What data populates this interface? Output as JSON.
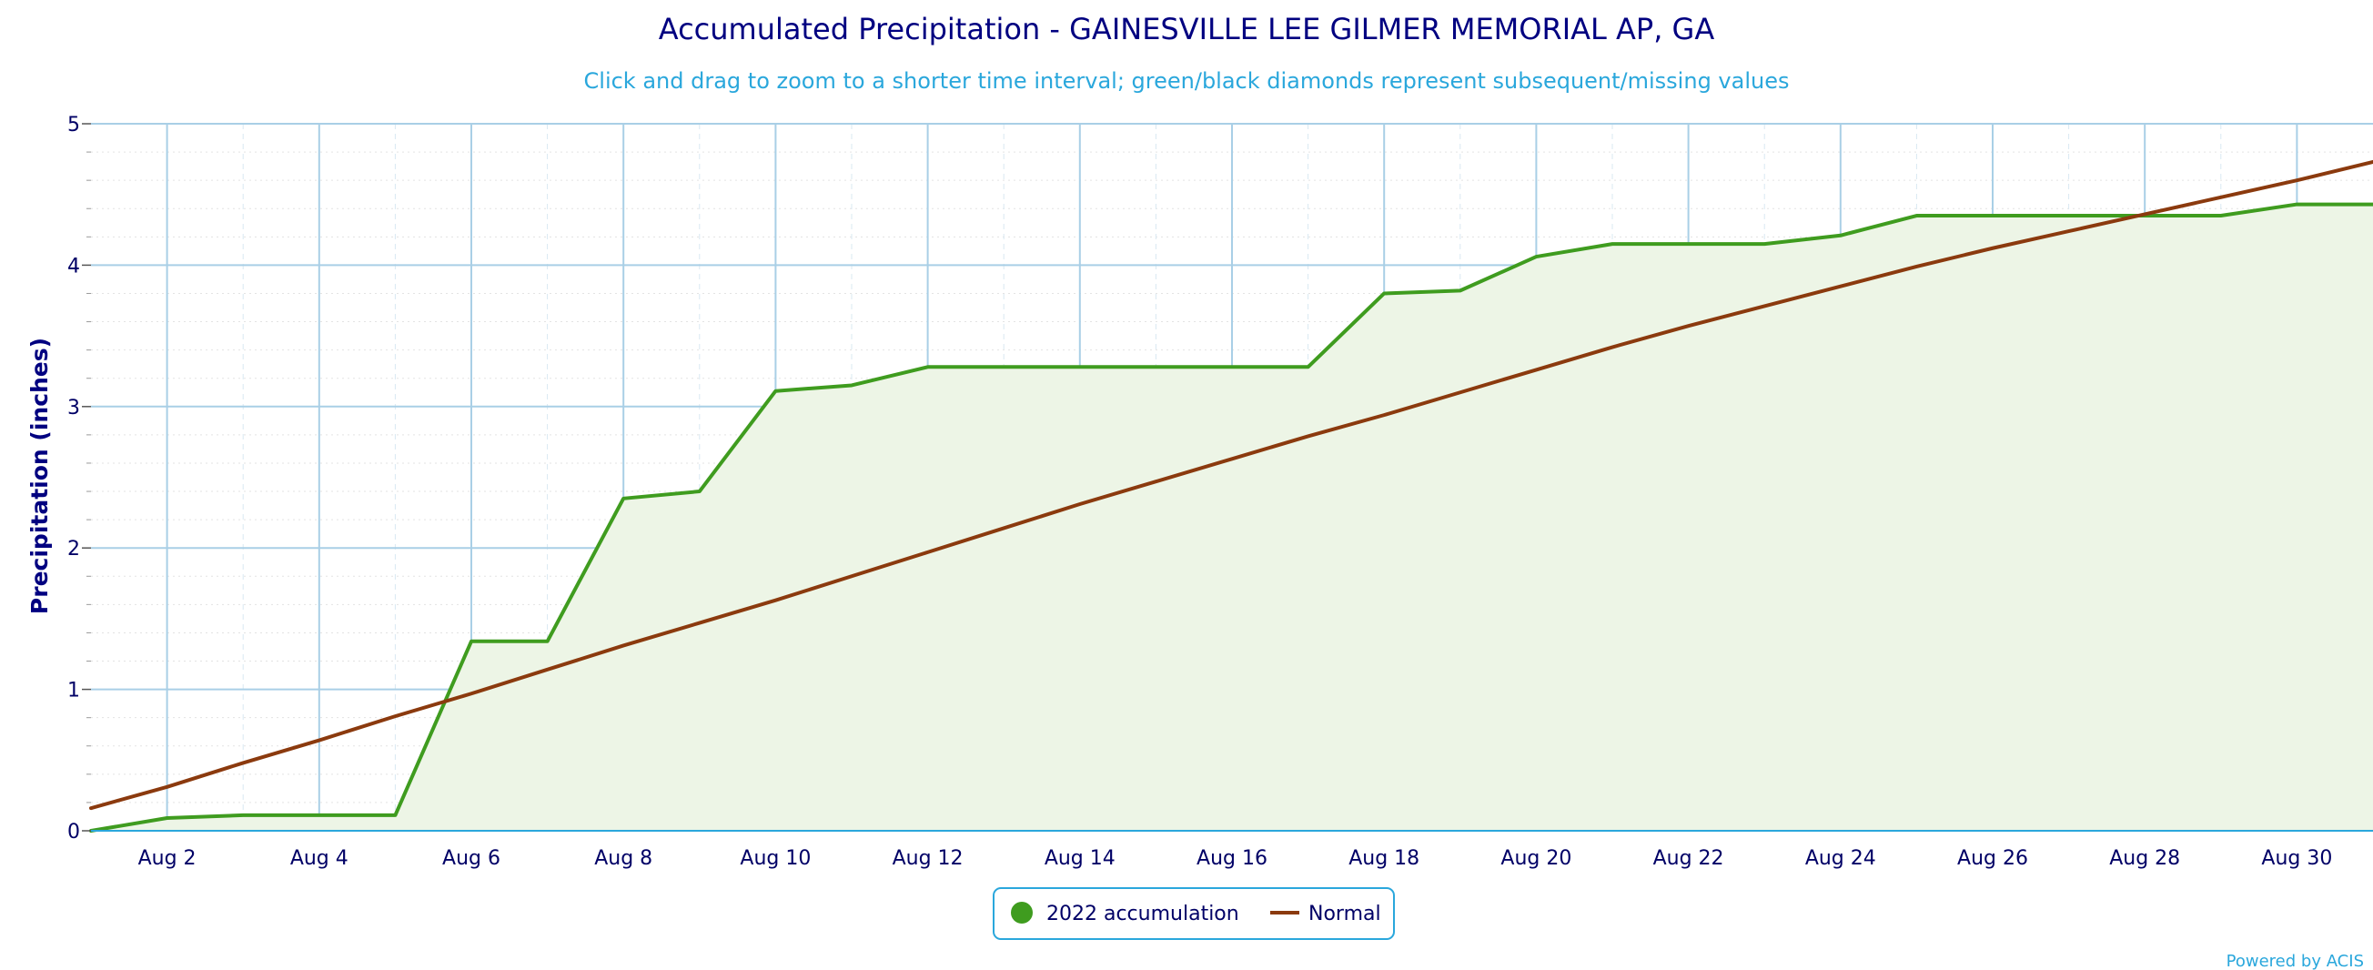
{
  "chart_data": {
    "type": "line",
    "title": "Accumulated Precipitation - GAINESVILLE LEE GILMER MEMORIAL AP, GA",
    "subtitle": "Click and drag to zoom to a shorter time interval; green/black diamonds represent subsequent/missing values",
    "ylabel": "Precipitation (inches)",
    "xlabel": "",
    "ylim": [
      0,
      5
    ],
    "xlim": [
      1,
      31
    ],
    "yticks": [
      "0",
      "1",
      "2",
      "3",
      "4",
      "5"
    ],
    "xticks": [
      {
        "day": 2,
        "label": "Aug 2"
      },
      {
        "day": 4,
        "label": "Aug 4"
      },
      {
        "day": 6,
        "label": "Aug 6"
      },
      {
        "day": 8,
        "label": "Aug 8"
      },
      {
        "day": 10,
        "label": "Aug 10"
      },
      {
        "day": 12,
        "label": "Aug 12"
      },
      {
        "day": 14,
        "label": "Aug 14"
      },
      {
        "day": 16,
        "label": "Aug 16"
      },
      {
        "day": 18,
        "label": "Aug 18"
      },
      {
        "day": 20,
        "label": "Aug 20"
      },
      {
        "day": 22,
        "label": "Aug 22"
      },
      {
        "day": 24,
        "label": "Aug 24"
      },
      {
        "day": 26,
        "label": "Aug 26"
      },
      {
        "day": 28,
        "label": "Aug 28"
      },
      {
        "day": 30,
        "label": "Aug 30"
      }
    ],
    "grid": true,
    "legend_position": "bottom-center",
    "series": [
      {
        "name": "2022 accumulation",
        "color": "#3f9c1f",
        "fill": "#edf5e6",
        "x": [
          1,
          2,
          3,
          4,
          5,
          6,
          7,
          8,
          9,
          10,
          11,
          12,
          13,
          14,
          15,
          16,
          17,
          18,
          19,
          20,
          21,
          22,
          23,
          24,
          25,
          26,
          27,
          28,
          29,
          30,
          31
        ],
        "values": [
          0.0,
          0.09,
          0.11,
          0.11,
          0.11,
          1.34,
          1.34,
          2.35,
          2.4,
          3.11,
          3.15,
          3.28,
          3.28,
          3.28,
          3.28,
          3.28,
          3.28,
          3.8,
          3.82,
          4.06,
          4.15,
          4.15,
          4.15,
          4.21,
          4.35,
          4.35,
          4.35,
          4.35,
          4.35,
          4.43,
          4.43
        ]
      },
      {
        "name": "Normal",
        "color": "#8b3a0e",
        "x": [
          1,
          2,
          3,
          4,
          5,
          6,
          7,
          8,
          9,
          10,
          11,
          12,
          13,
          14,
          15,
          16,
          17,
          18,
          19,
          20,
          21,
          22,
          23,
          24,
          25,
          26,
          27,
          28,
          29,
          30,
          31
        ],
        "values": [
          0.16,
          0.31,
          0.48,
          0.64,
          0.81,
          0.97,
          1.14,
          1.31,
          1.47,
          1.63,
          1.8,
          1.97,
          2.14,
          2.31,
          2.47,
          2.63,
          2.79,
          2.94,
          3.1,
          3.26,
          3.42,
          3.57,
          3.71,
          3.85,
          3.99,
          4.12,
          4.24,
          4.36,
          4.48,
          4.6,
          4.73
        ]
      }
    ]
  },
  "credit": "Powered by ACIS"
}
